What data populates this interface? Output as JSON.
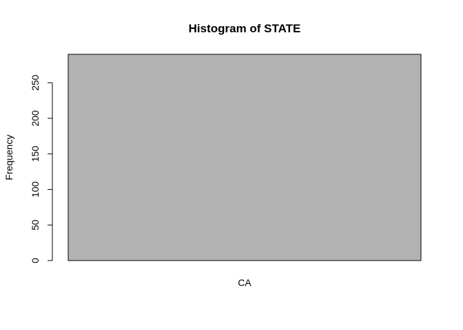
{
  "chart_data": {
    "type": "bar",
    "title": "Histogram of STATE",
    "xlabel": "",
    "ylabel": "Frequency",
    "categories": [
      "CA"
    ],
    "values": [
      290
    ],
    "ylim": [
      0,
      290
    ],
    "yticks": [
      0,
      50,
      100,
      150,
      200,
      250
    ],
    "bar_color": "#b2b2b2",
    "grid": false,
    "legend": "none"
  }
}
